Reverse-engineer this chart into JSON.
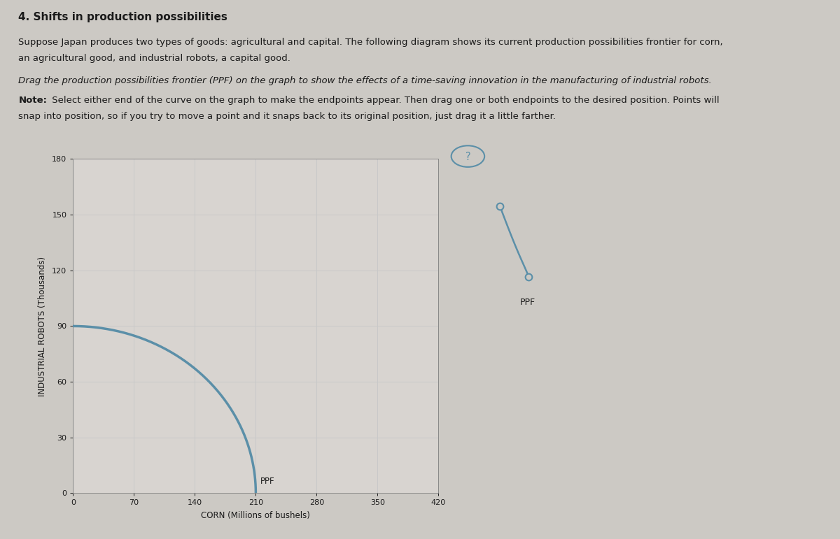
{
  "title": "4. Shifts in production possibilities",
  "p1_line1": "Suppose Japan produces two types of goods: agricultural and capital. The following diagram shows its current production possibilities frontier for corn,",
  "p1_line2": "an agricultural good, and industrial robots, a capital good.",
  "p2_italic": "Drag the production possibilities frontier (PPF) on the graph to show the effects of a time-saving innovation in the manufacturing of industrial robots.",
  "note_bold": "Note:",
  "note_line1": " Select either end of the curve on the graph to make the endpoints appear. Then drag one or both endpoints to the desired position. Points will",
  "note_line2": "snap into position, so if you try to move a point and it snaps back to its original position, just drag it a little farther.",
  "xlabel": "CORN (Millions of bushels)",
  "ylabel": "INDUSTRIAL ROBOTS (Thousands)",
  "xticks": [
    0,
    70,
    140,
    210,
    280,
    350,
    420
  ],
  "yticks": [
    0,
    30,
    60,
    90,
    120,
    150,
    180
  ],
  "xlim": [
    0,
    420
  ],
  "ylim": [
    0,
    180
  ],
  "ppf_label": "PPF",
  "ppf_x_end": 210,
  "ppf_y_start": 90,
  "ppf_color": "#5b8fa8",
  "ppf_linewidth": 2.5,
  "grid_color": "#c8c8c8",
  "outer_bg": "#ccc9c4",
  "chart_panel_bg": "#dedad6",
  "plot_bg": "#d8d4d0",
  "drag_widget_color": "#5b8fa8",
  "qmark_color": "#5b8fa8",
  "font_color": "#1a1a1a",
  "title_fontsize": 11,
  "body_fontsize": 9.5,
  "axis_label_fontsize": 8.5,
  "tick_fontsize": 8
}
